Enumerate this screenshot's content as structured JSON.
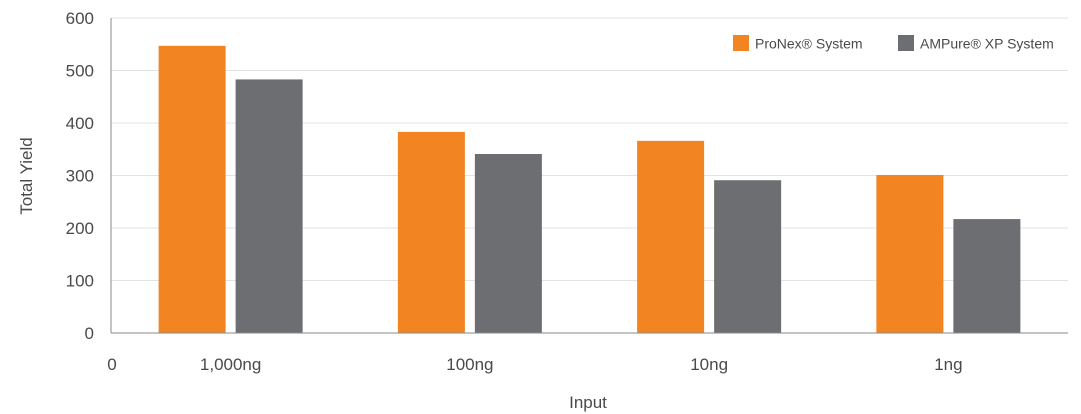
{
  "chart_data": {
    "type": "bar",
    "title": "",
    "xlabel": "Input",
    "ylabel": "Total Yield",
    "x_origin_label": "0",
    "categories": [
      "1,000ng",
      "100ng",
      "10ng",
      "1ng"
    ],
    "ylim": [
      0,
      600
    ],
    "yticks": [
      "0",
      "100",
      "200",
      "300",
      "400",
      "500",
      "600"
    ],
    "grid": "horizontal",
    "legend_position": "top-right",
    "series": [
      {
        "name": "ProNex® System",
        "color": "#f28422",
        "values": [
          547,
          383,
          366,
          301
        ]
      },
      {
        "name": "AMPure® XP System",
        "color": "#6d6e71",
        "values": [
          483,
          341,
          291,
          217
        ]
      }
    ]
  }
}
